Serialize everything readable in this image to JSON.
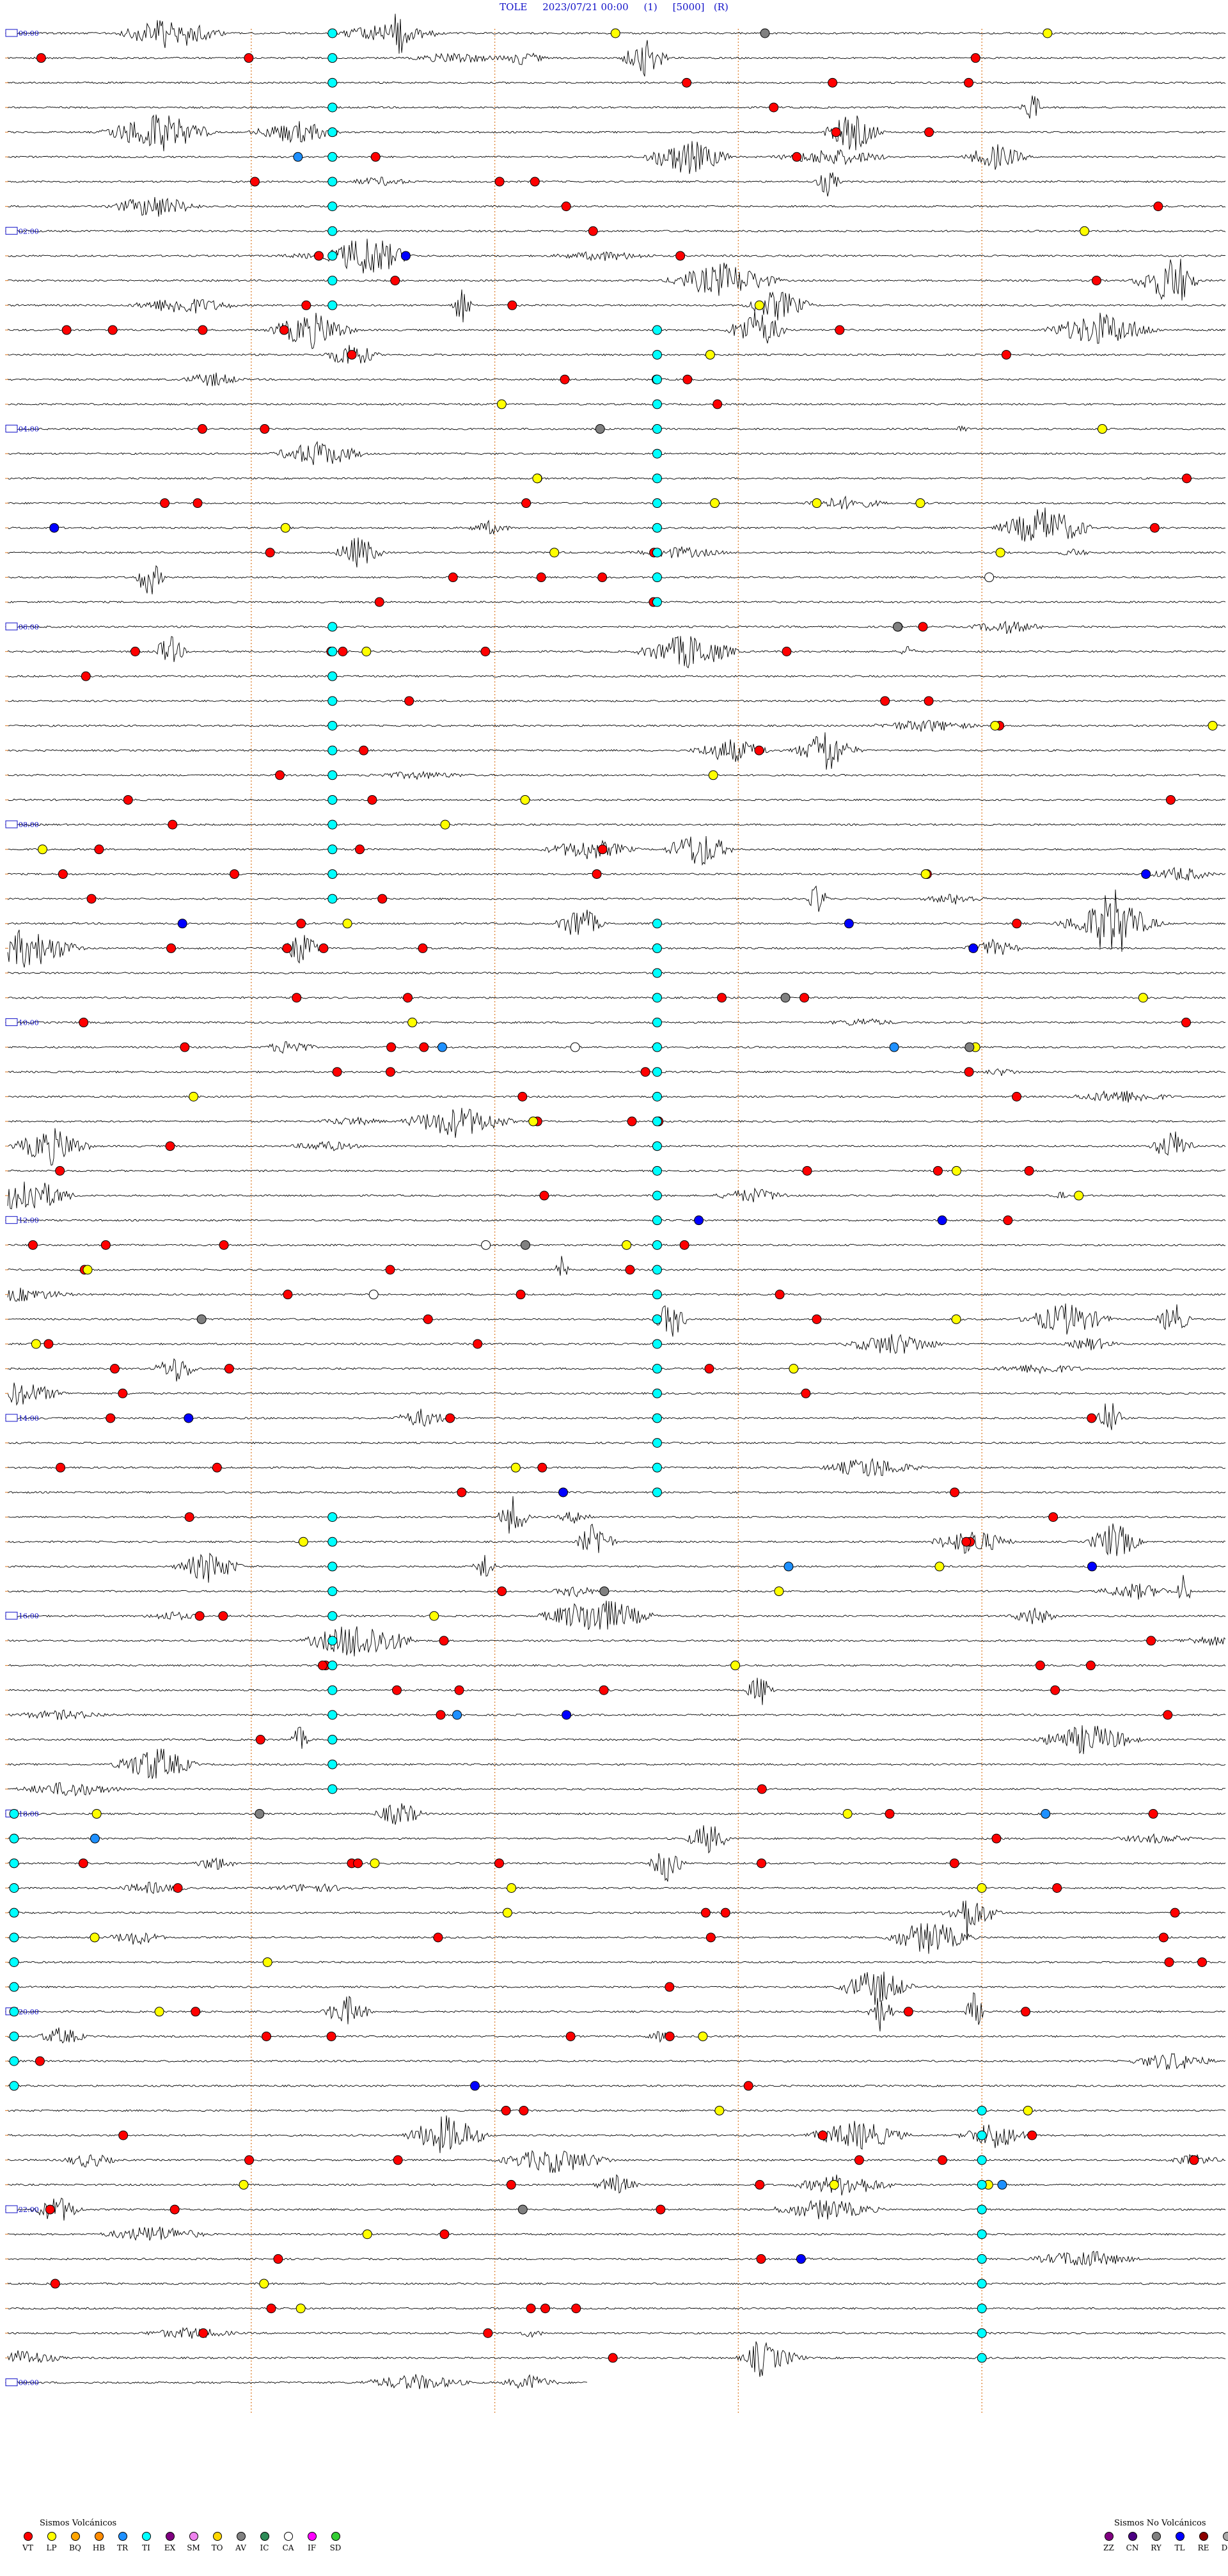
{
  "header": {
    "station": "TOLE",
    "datetime": "2023/07/21 00:00",
    "channel": "(1)",
    "scale": "[5000]",
    "mode": "(R)"
  },
  "chart_data": {
    "type": "seismogram-helicorder",
    "title": "TOLE     2023/07/21 00:00     (1)     [5000]   (R)",
    "x_axis": "minutes within each 15-minute line",
    "xlim": [
      0,
      15
    ],
    "lines_per_hour": 4,
    "total_lines": 96,
    "hour_labels": [
      "00:00",
      "02:00",
      "04:00",
      "06:00",
      "08:00",
      "10:00",
      "12:00",
      "14:00",
      "16:00",
      "18:00",
      "20:00",
      "22:00",
      "00:00"
    ],
    "grid_minute_marks": [
      3,
      6,
      9,
      12
    ],
    "grid": "dotted vertical lines every 3 minutes",
    "event_counts": {
      "VT": 210,
      "LP": 60,
      "TR": 8,
      "TI": 120,
      "TL": 14,
      "AV": 10,
      "CA": 4
    }
  },
  "legend": {
    "volcanic_title": "Sismos Volcánicos",
    "volcanic": [
      {
        "code": "VT",
        "color": "#ff0000"
      },
      {
        "code": "LP",
        "color": "#ffff00"
      },
      {
        "code": "BQ",
        "color": "#ffa500"
      },
      {
        "code": "HB",
        "color": "#ff8c00"
      },
      {
        "code": "TR",
        "color": "#1e90ff"
      },
      {
        "code": "TI",
        "color": "#00ffff"
      },
      {
        "code": "EX",
        "color": "#800080"
      },
      {
        "code": "SM",
        "color": "#ee82ee"
      },
      {
        "code": "TO",
        "color": "#ffd700"
      },
      {
        "code": "AV",
        "color": "#808080"
      },
      {
        "code": "IC",
        "color": "#2e8b57"
      },
      {
        "code": "CA",
        "color": "#ffffff"
      },
      {
        "code": "IF",
        "color": "#ff00ff"
      },
      {
        "code": "SD",
        "color": "#32cd32"
      }
    ],
    "nonvolcanic_title": "Sismos No Volcánicos",
    "nonvolcanic": [
      {
        "code": "ZZ",
        "color": "#800080"
      },
      {
        "code": "CN",
        "color": "#4b0082"
      },
      {
        "code": "RY",
        "color": "#808080"
      },
      {
        "code": "TL",
        "color": "#0000ff"
      },
      {
        "code": "RE",
        "color": "#8b0000"
      },
      {
        "code": "DS",
        "color": "#a9a9a9"
      }
    ]
  }
}
